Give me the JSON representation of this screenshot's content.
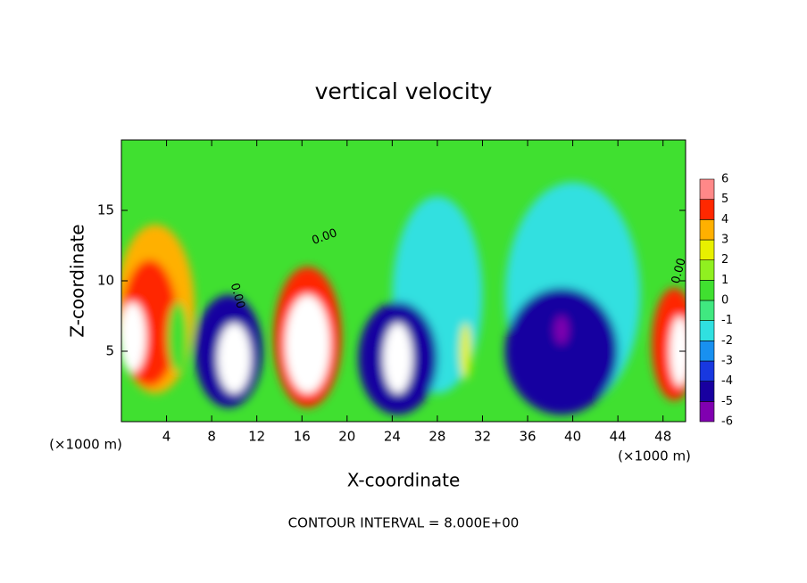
{
  "chart_data": {
    "type": "contour",
    "title": "vertical velocity",
    "xlabel": "X-coordinate",
    "ylabel": "Z-coordinate",
    "x_unit_label": "(×1000 m)",
    "xlim": [
      0,
      50
    ],
    "ylim": [
      0,
      20
    ],
    "xticks": [
      4,
      8,
      12,
      16,
      20,
      24,
      28,
      32,
      36,
      40,
      44,
      48
    ],
    "yticks": [
      5,
      10,
      15
    ],
    "colorbar": {
      "levels": [
        -6,
        -5,
        -4,
        -3,
        -2,
        -1,
        0,
        1,
        2,
        3,
        4,
        5,
        6
      ],
      "colors": [
        "#8000b0",
        "#1800a0",
        "#1838e0",
        "#1890f0",
        "#30e0e0",
        "#40e880",
        "#40e030",
        "#90f020",
        "#e8f000",
        "#ffb000",
        "#ff2800",
        "#ff8888"
      ]
    },
    "background_value": 0.5,
    "features": [
      {
        "x": 28,
        "z": 9,
        "rx": 4,
        "rz": 7,
        "value": -1.5
      },
      {
        "x": 40,
        "z": 9,
        "rx": 6,
        "rz": 8,
        "value": -1.5
      },
      {
        "x": 3,
        "z": 8,
        "rx": 3.5,
        "rz": 6,
        "value": 3.5
      },
      {
        "x": 2.5,
        "z": 7,
        "rx": 2.5,
        "rz": 4.5,
        "value": 5
      },
      {
        "x": 1,
        "z": 6,
        "rx": 1.2,
        "rz": 2.5,
        "value": 8
      },
      {
        "x": 5,
        "z": 6,
        "rx": 0.9,
        "rz": 2.5,
        "value": 0.5
      },
      {
        "x": 9.5,
        "z": 5,
        "rx": 3,
        "rz": 4,
        "value": -4
      },
      {
        "x": 10,
        "z": 4.5,
        "rx": 1.5,
        "rz": 2.5,
        "value": -8
      },
      {
        "x": 16.5,
        "z": 6,
        "rx": 3,
        "rz": 5,
        "value": 5
      },
      {
        "x": 16.5,
        "z": 5.5,
        "rx": 2,
        "rz": 3.5,
        "value": 8
      },
      {
        "x": 24.5,
        "z": 4.5,
        "rx": 3.5,
        "rz": 4,
        "value": -4
      },
      {
        "x": 24.5,
        "z": 4.5,
        "rx": 1.3,
        "rz": 2.5,
        "value": -8
      },
      {
        "x": 30.5,
        "z": 5,
        "rx": 0.5,
        "rz": 2,
        "value": 2.5
      },
      {
        "x": 39,
        "z": 5,
        "rx": 5,
        "rz": 4.5,
        "value": -4
      },
      {
        "x": 39,
        "z": 6.5,
        "rx": 0.6,
        "rz": 1,
        "value": -5.5
      },
      {
        "x": 49,
        "z": 5.5,
        "rx": 2,
        "rz": 4,
        "value": 5
      },
      {
        "x": 49.5,
        "z": 5,
        "rx": 0.9,
        "rz": 2.5,
        "value": 8
      }
    ],
    "contour_labels": [
      "0.00",
      "0.00",
      "0.00"
    ],
    "footnote": "CONTOUR INTERVAL = 8.000E+00"
  }
}
